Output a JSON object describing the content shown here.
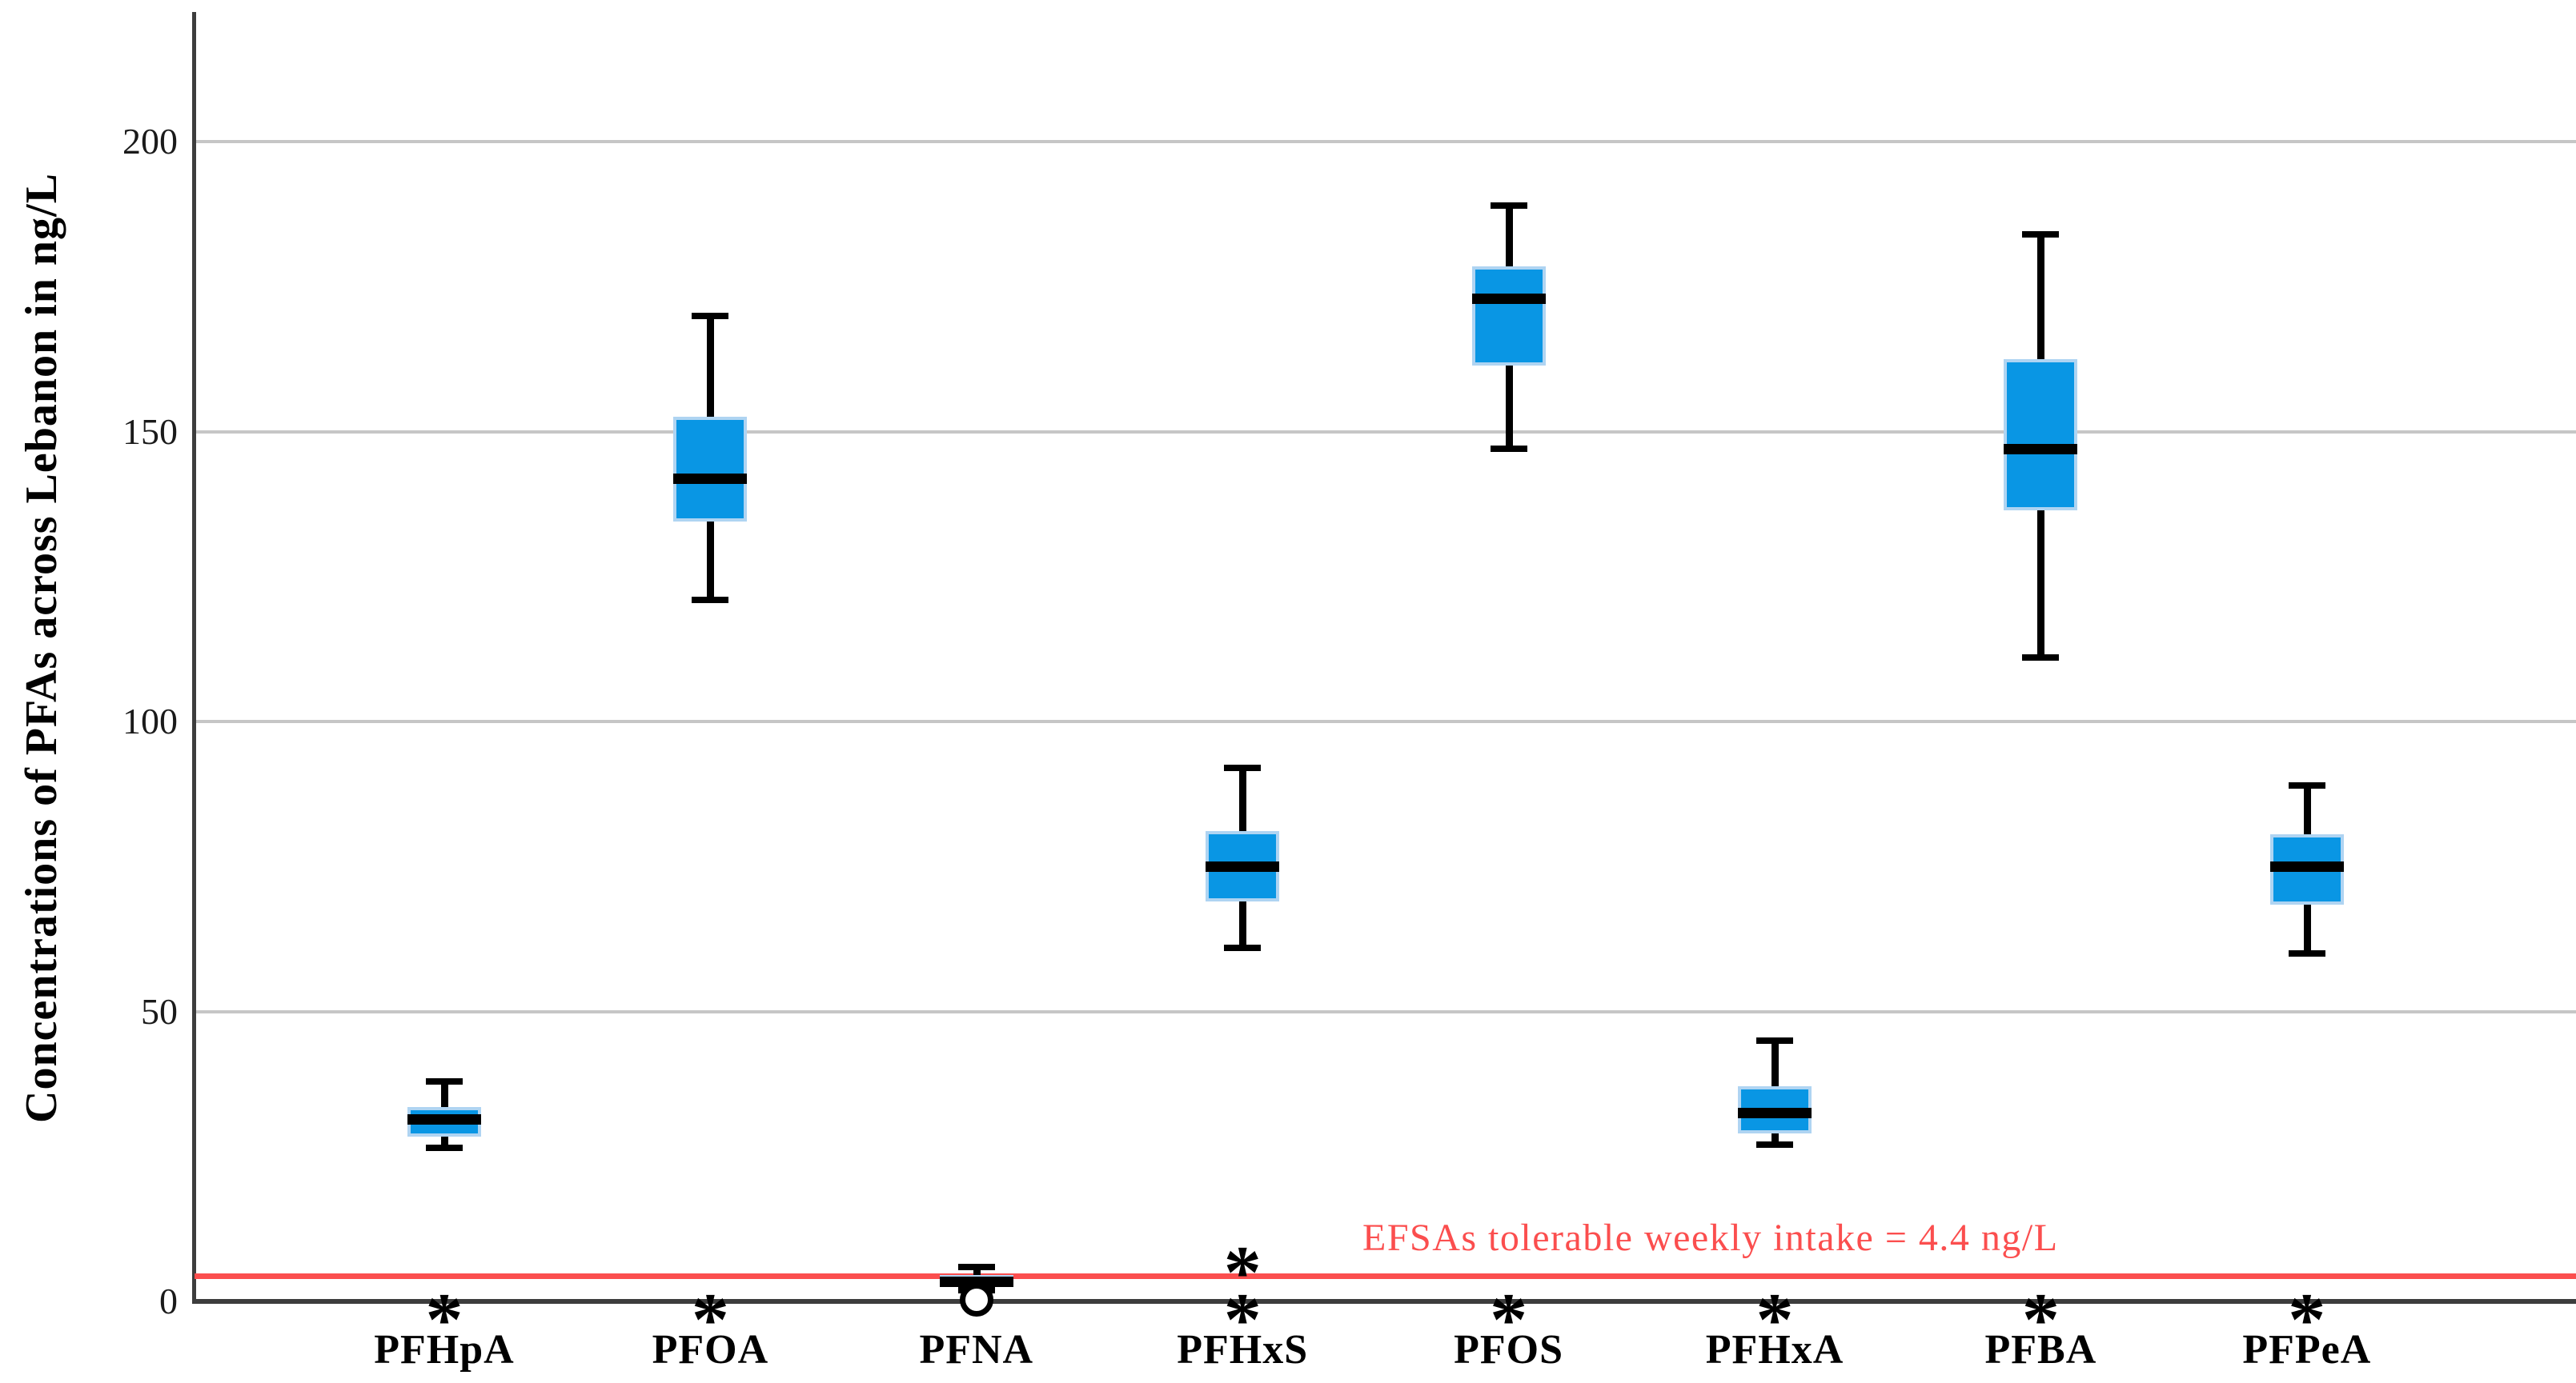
{
  "figure": {
    "background": "#ffffff"
  },
  "chart_data": {
    "type": "box",
    "title": "",
    "xlabel": "",
    "ylabel": "Concentrations of PFAs across Lebanon in ng/L",
    "yticks": [
      0,
      50,
      100,
      150,
      200
    ],
    "ylim": [
      0,
      222
    ],
    "grid": "horizontal",
    "gridline_color": "#c6c6c6",
    "axis_color": "#3d3d3d",
    "box_fill_color": "#0996e4",
    "box_border_color": "#afd4f2",
    "median_color": "#000000",
    "whisker_color": "#000000",
    "outlier_marker": "asterisk",
    "reference_line": {
      "value": 4.4,
      "color": "#fb4e4e",
      "label": "EFSAs tolerable weekly intake = 4.4 ng/L"
    },
    "categories": [
      "PFHpA",
      "PFOA",
      "PFNA",
      "PFHxS",
      "PFOS",
      "PFHxA",
      "PFBA",
      "PFPeA"
    ],
    "series": [
      {
        "label": "PFHpA",
        "whisker_low": 26.5,
        "q1": 29,
        "median": 31.5,
        "q3": 33,
        "whisker_high": 38,
        "extreme_outliers": [
          0
        ],
        "mild_outliers": []
      },
      {
        "label": "PFOA",
        "whisker_low": 121,
        "q1": 135,
        "median": 142,
        "q3": 152,
        "whisker_high": 170,
        "extreme_outliers": [
          0
        ],
        "mild_outliers": []
      },
      {
        "label": "PFNA",
        "whisker_low": 2,
        "q1": 3,
        "median": 3.5,
        "q3": 4,
        "whisker_high": 6,
        "extreme_outliers": [],
        "mild_outliers": [
          0.3
        ]
      },
      {
        "label": "PFHxS",
        "whisker_low": 61,
        "q1": 69.5,
        "median": 75,
        "q3": 80.5,
        "whisker_high": 92,
        "extreme_outliers": [
          7,
          0
        ],
        "mild_outliers": []
      },
      {
        "label": "PFOS",
        "whisker_low": 147,
        "q1": 162,
        "median": 173,
        "q3": 178,
        "whisker_high": 189,
        "extreme_outliers": [
          0
        ],
        "mild_outliers": []
      },
      {
        "label": "PFHxA",
        "whisker_low": 27,
        "q1": 29.5,
        "median": 32.5,
        "q3": 36.5,
        "whisker_high": 45,
        "extreme_outliers": [
          0
        ],
        "mild_outliers": []
      },
      {
        "label": "PFBA",
        "whisker_low": 111,
        "q1": 137,
        "median": 147,
        "q3": 162,
        "whisker_high": 184,
        "extreme_outliers": [
          0
        ],
        "mild_outliers": []
      },
      {
        "label": "PFPeA",
        "whisker_low": 60,
        "q1": 69,
        "median": 75,
        "q3": 80,
        "whisker_high": 89,
        "extreme_outliers": [
          0
        ],
        "mild_outliers": []
      }
    ]
  }
}
